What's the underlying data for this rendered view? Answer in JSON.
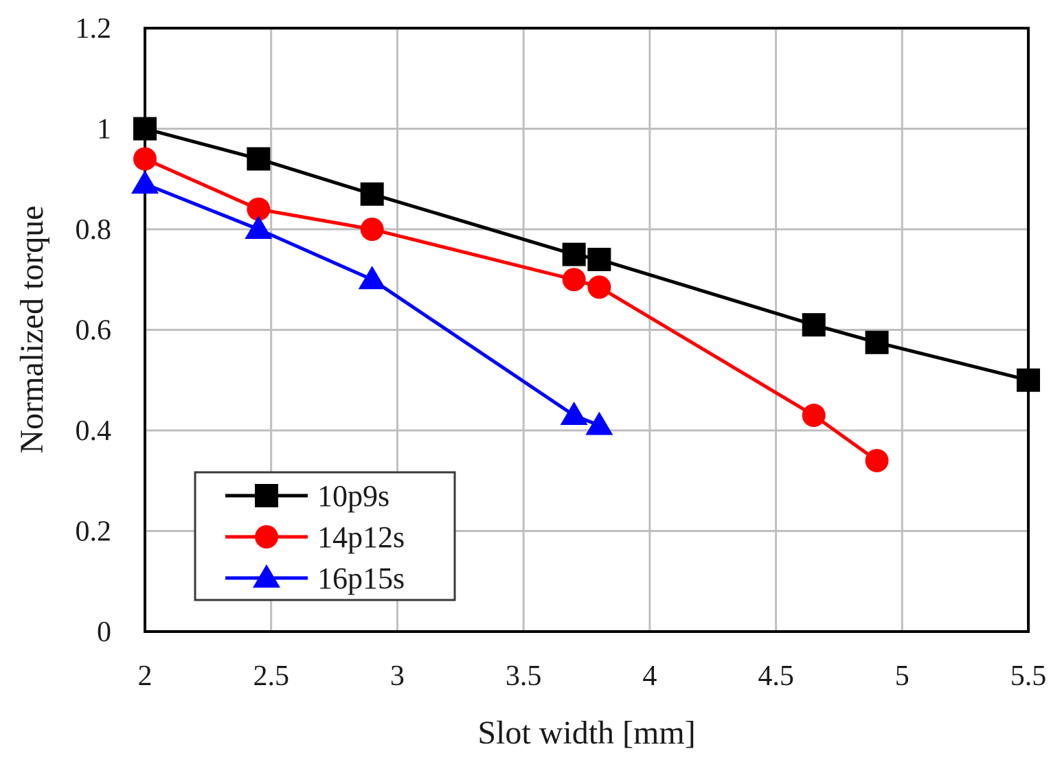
{
  "chart_data": {
    "type": "line",
    "title": "",
    "xlabel": "Slot width [mm]",
    "ylabel": "Normalized torque",
    "xlim": [
      2,
      5.5
    ],
    "ylim": [
      0,
      1.2
    ],
    "xticks": [
      2,
      2.5,
      3,
      3.5,
      4,
      4.5,
      5,
      5.5
    ],
    "yticks": [
      0,
      0.2,
      0.4,
      0.6,
      0.8,
      1,
      1.2
    ],
    "xtick_labels": [
      "2",
      "2.5",
      "3",
      "3.5",
      "4",
      "4.5",
      "5",
      "5.5"
    ],
    "ytick_labels": [
      "0",
      "0.2",
      "0.4",
      "0.6",
      "0.8",
      "1",
      "1.2"
    ],
    "grid": true,
    "legend_position": "bottom-left",
    "series": [
      {
        "name": "10p9s",
        "color": "#000000",
        "marker": "square",
        "x": [
          2,
          2.45,
          2.9,
          3.7,
          3.8,
          4.65,
          4.9,
          5.5
        ],
        "y": [
          1.0,
          0.94,
          0.87,
          0.75,
          0.74,
          0.61,
          0.575,
          0.5
        ]
      },
      {
        "name": "14p12s",
        "color": "#ff0000",
        "marker": "circle",
        "x": [
          2,
          2.45,
          2.9,
          3.7,
          3.8,
          4.65,
          4.9
        ],
        "y": [
          0.94,
          0.84,
          0.8,
          0.7,
          0.685,
          0.43,
          0.34
        ]
      },
      {
        "name": "16p15s",
        "color": "#0000ff",
        "marker": "triangle",
        "x": [
          2,
          2.45,
          2.9,
          3.7,
          3.8
        ],
        "y": [
          0.89,
          0.8,
          0.7,
          0.43,
          0.41
        ]
      }
    ]
  }
}
